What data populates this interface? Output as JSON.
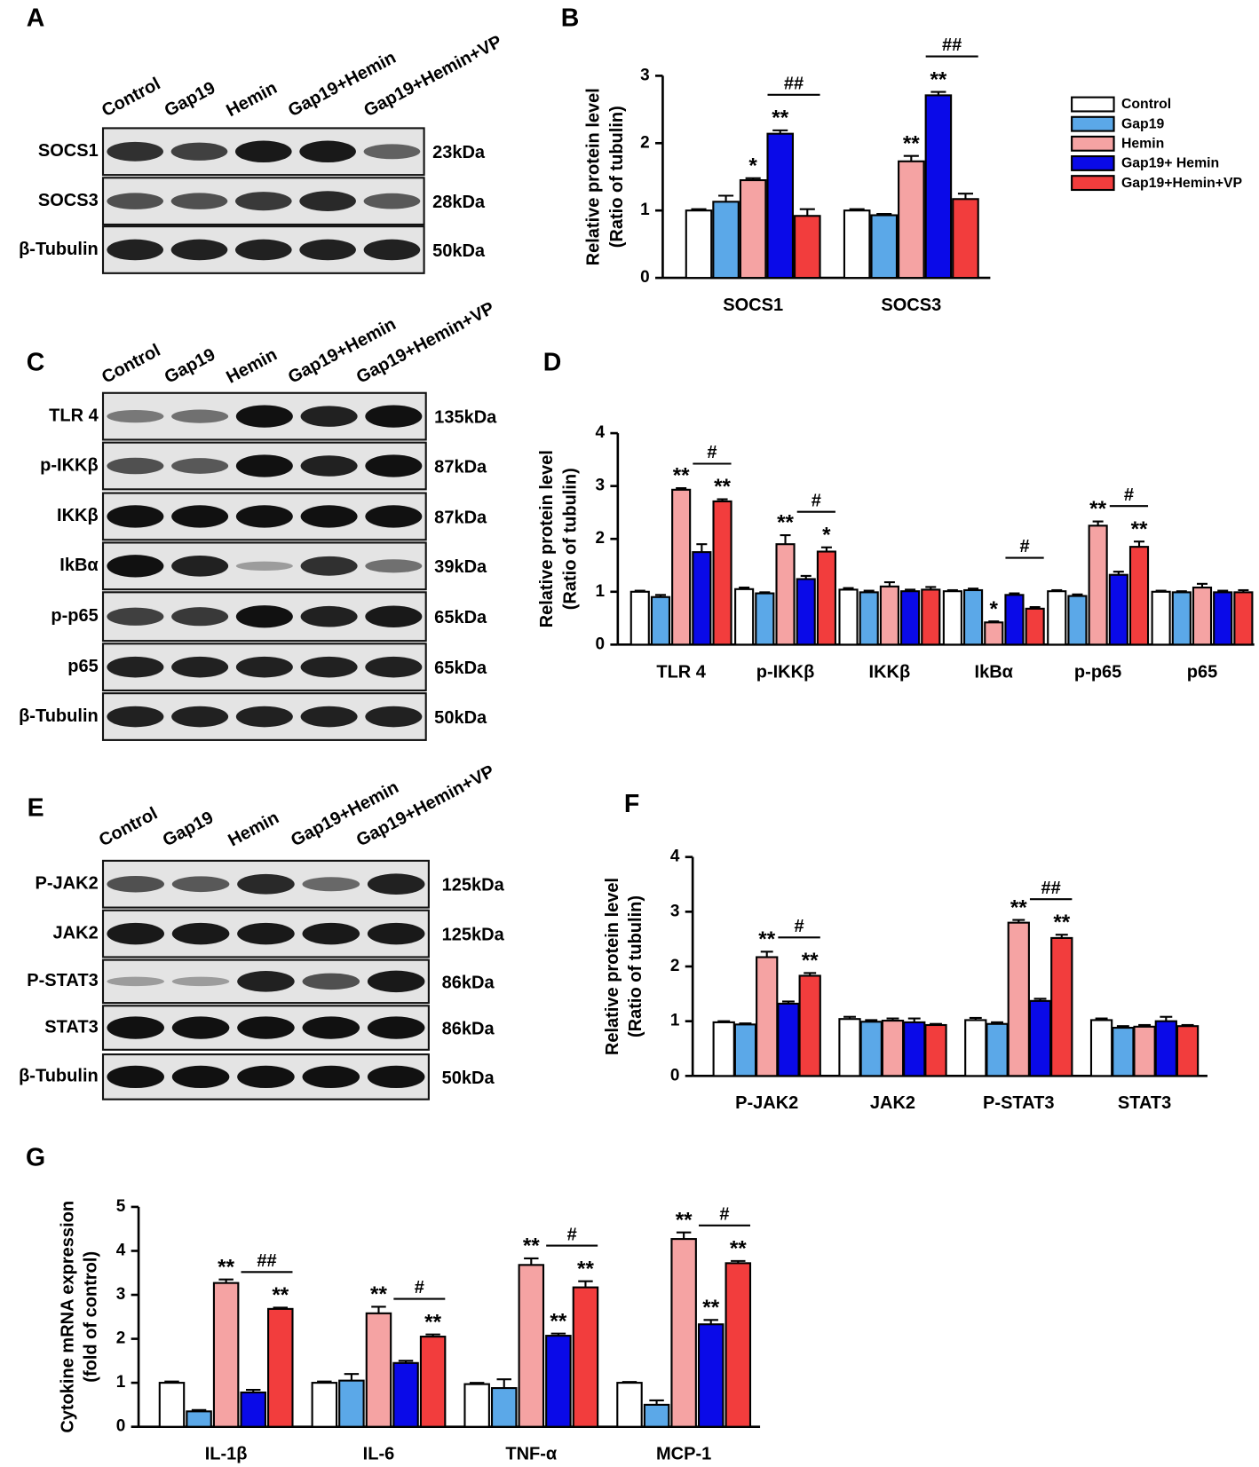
{
  "blots": [
    {
      "label": "A",
      "lanes": [
        "Control",
        "Gap19",
        "Hemin",
        "Gap19+Hemin",
        "Gap19+Hemin+VP"
      ],
      "rows": [
        {
          "protein": "SOCS1",
          "size": "23kDa"
        },
        {
          "protein": "SOCS3",
          "size": "28kDa"
        },
        {
          "protein": "β-Tubulin",
          "size": "50kDa"
        }
      ]
    },
    {
      "label": "C",
      "lanes": [
        "Control",
        "Gap19",
        "Hemin",
        "Gap19+Hemin",
        "Gap19+Hemin+VP"
      ],
      "rows": [
        {
          "protein": "TLR 4",
          "size": "135kDa"
        },
        {
          "protein": "p-IKKβ",
          "size": "87kDa"
        },
        {
          "protein": "IKKβ",
          "size": "87kDa"
        },
        {
          "protein": "IkBα",
          "size": "39kDa"
        },
        {
          "protein": "p-p65",
          "size": "65kDa"
        },
        {
          "protein": "p65",
          "size": "65kDa"
        },
        {
          "protein": "β-Tubulin",
          "size": "50kDa"
        }
      ]
    },
    {
      "label": "E",
      "lanes": [
        "Control",
        "Gap19",
        "Hemin",
        "Gap19+Hemin",
        "Gap19+Hemin+VP"
      ],
      "rows": [
        {
          "protein": "P-JAK2",
          "size": "125kDa"
        },
        {
          "protein": "JAK2",
          "size": "125kDa"
        },
        {
          "protein": "P-STAT3",
          "size": "86kDa"
        },
        {
          "protein": "STAT3",
          "size": "86kDa"
        },
        {
          "protein": "β-Tubulin",
          "size": "50kDa"
        }
      ]
    }
  ],
  "chart_data": [
    {
      "type": "bar",
      "label": "B",
      "y_label": [
        "Relative protein level",
        "(Ratio of tubulin)"
      ],
      "categories": [
        "SOCS1",
        "SOCS3"
      ],
      "ylim": [
        0,
        3
      ],
      "yticks": [
        0,
        1,
        2,
        3
      ],
      "series": [
        {
          "name": "Control",
          "color": "#ffffff",
          "values": [
            1.0,
            1.0
          ],
          "errors": [
            0.02,
            0.02
          ],
          "significance": [
            null,
            null
          ]
        },
        {
          "name": "Gap19",
          "color": "#5ba8e8",
          "values": [
            1.13,
            0.93
          ],
          "errors": [
            0.09,
            0.02
          ],
          "significance": [
            null,
            null
          ]
        },
        {
          "name": "Hemin",
          "color": "#f5a3a3",
          "values": [
            1.45,
            1.73
          ],
          "errors": [
            0.03,
            0.08
          ],
          "significance": [
            "*",
            "**"
          ]
        },
        {
          "name": "Gap19+ Hemin",
          "color": "#0a0ae8",
          "values": [
            2.14,
            2.71
          ],
          "errors": [
            0.05,
            0.05
          ],
          "significance": [
            "**",
            "**"
          ]
        },
        {
          "name": "Gap19+Hemin+VP",
          "color": "#f23d3d",
          "values": [
            0.92,
            1.17
          ],
          "errors": [
            0.1,
            0.08
          ],
          "significance": [
            null,
            null
          ]
        }
      ],
      "comparison": [
        "##",
        "##"
      ]
    },
    {
      "type": "bar",
      "label": "D",
      "y_label": [
        "Relative protein level",
        "(Ratio of tubulin)"
      ],
      "categories": [
        "TLR 4",
        "p-IKKβ",
        "IKKβ",
        "IkBα",
        "p-p65",
        "p65"
      ],
      "ylim": [
        0,
        4
      ],
      "yticks": [
        0,
        1,
        2,
        3,
        4
      ],
      "series": [
        {
          "color": "#ffffff",
          "values": [
            1.0,
            1.05,
            1.04,
            1.01,
            1.01,
            1.0
          ],
          "errors": [
            0.02,
            0.03,
            0.03,
            0.02,
            0.02,
            0.02
          ],
          "significance": [
            null,
            null,
            null,
            null,
            null,
            null
          ]
        },
        {
          "color": "#5ba8e8",
          "values": [
            0.9,
            0.97,
            0.99,
            1.03,
            0.92,
            0.99
          ],
          "errors": [
            0.04,
            0.02,
            0.03,
            0.03,
            0.03,
            0.02
          ],
          "significance": [
            null,
            null,
            null,
            null,
            null,
            null
          ]
        },
        {
          "color": "#f5a3a3",
          "values": [
            2.93,
            1.9,
            1.1,
            0.42,
            2.25,
            1.08
          ],
          "errors": [
            0.03,
            0.17,
            0.08,
            0.02,
            0.08,
            0.07
          ],
          "significance": [
            "**",
            "**",
            null,
            "*",
            "**",
            null
          ]
        },
        {
          "color": "#0a0ae8",
          "values": [
            1.75,
            1.24,
            1.01,
            0.94,
            1.32,
            0.99
          ],
          "errors": [
            0.15,
            0.06,
            0.03,
            0.03,
            0.06,
            0.03
          ],
          "significance": [
            null,
            null,
            null,
            null,
            null,
            null
          ]
        },
        {
          "color": "#f23d3d",
          "values": [
            2.71,
            1.76,
            1.04,
            0.68,
            1.85,
            0.99
          ],
          "errors": [
            0.04,
            0.08,
            0.05,
            0.03,
            0.1,
            0.04
          ],
          "significance": [
            "**",
            "*",
            null,
            null,
            "**",
            null
          ]
        }
      ],
      "comparison": [
        "#",
        "#",
        null,
        "#",
        "#",
        null
      ]
    },
    {
      "type": "bar",
      "label": "F",
      "y_label": [
        "Relative protein level",
        "(Ratio of tubulin)"
      ],
      "categories": [
        "P-JAK2",
        "JAK2",
        "P-STAT3",
        "STAT3"
      ],
      "ylim": [
        0,
        4
      ],
      "yticks": [
        0,
        1,
        2,
        3,
        4
      ],
      "series": [
        {
          "color": "#ffffff",
          "values": [
            0.98,
            1.04,
            1.02,
            1.02
          ],
          "errors": [
            0.02,
            0.04,
            0.04,
            0.03
          ],
          "significance": [
            null,
            null,
            null,
            null
          ]
        },
        {
          "color": "#5ba8e8",
          "values": [
            0.94,
            0.99,
            0.95,
            0.88
          ],
          "errors": [
            0.02,
            0.03,
            0.03,
            0.03
          ],
          "significance": [
            null,
            null,
            null,
            null
          ]
        },
        {
          "color": "#f5a3a3",
          "values": [
            2.17,
            1.01,
            2.8,
            0.9
          ],
          "errors": [
            0.1,
            0.04,
            0.05,
            0.03
          ],
          "significance": [
            "**",
            null,
            "**",
            null
          ]
        },
        {
          "color": "#0a0ae8",
          "values": [
            1.32,
            0.98,
            1.37,
            1.0
          ],
          "errors": [
            0.04,
            0.07,
            0.04,
            0.08
          ],
          "significance": [
            null,
            null,
            null,
            null
          ]
        },
        {
          "color": "#f23d3d",
          "values": [
            1.83,
            0.93,
            2.52,
            0.91
          ],
          "errors": [
            0.05,
            0.02,
            0.06,
            0.02
          ],
          "significance": [
            "**",
            null,
            "**",
            null
          ]
        }
      ],
      "comparison": [
        "#",
        null,
        "##",
        null
      ]
    },
    {
      "type": "bar",
      "label": "G",
      "y_label": [
        "Cytokine mRNA expression",
        "(fold of control)"
      ],
      "categories": [
        "IL-1β",
        "IL-6",
        "TNF-α",
        "MCP-1"
      ],
      "ylim": [
        0,
        5
      ],
      "yticks": [
        0,
        1,
        2,
        3,
        4,
        5
      ],
      "series": [
        {
          "color": "#ffffff",
          "values": [
            1.0,
            1.0,
            0.97,
            1.0
          ],
          "errors": [
            0.03,
            0.03,
            0.03,
            0.02
          ],
          "significance": [
            null,
            null,
            null,
            null
          ]
        },
        {
          "color": "#5ba8e8",
          "values": [
            0.35,
            1.05,
            0.88,
            0.5
          ],
          "errors": [
            0.03,
            0.15,
            0.2,
            0.1
          ],
          "significance": [
            null,
            null,
            null,
            null
          ]
        },
        {
          "color": "#f5a3a3",
          "values": [
            3.27,
            2.58,
            3.68,
            4.27
          ],
          "errors": [
            0.08,
            0.15,
            0.15,
            0.15
          ],
          "significance": [
            "**",
            "**",
            "**",
            "**"
          ]
        },
        {
          "color": "#0a0ae8",
          "values": [
            0.78,
            1.45,
            2.07,
            2.33
          ],
          "errors": [
            0.06,
            0.05,
            0.05,
            0.1
          ],
          "significance": [
            null,
            null,
            "**",
            "**"
          ]
        },
        {
          "color": "#f23d3d",
          "values": [
            2.68,
            2.05,
            3.17,
            3.72
          ],
          "errors": [
            0.03,
            0.05,
            0.14,
            0.05
          ],
          "significance": [
            "**",
            "**",
            "**",
            "**"
          ]
        }
      ],
      "comparison": [
        "##",
        "#",
        "#",
        "#"
      ]
    }
  ]
}
